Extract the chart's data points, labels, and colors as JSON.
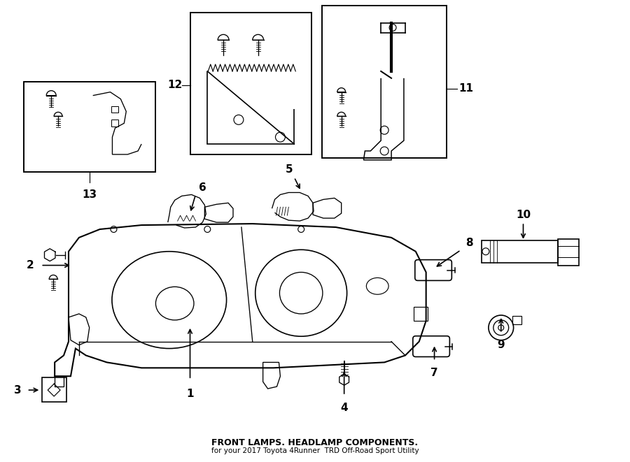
{
  "bg_color": "#ffffff",
  "line_color": "#000000",
  "title": "FRONT LAMPS. HEADLAMP COMPONENTS.",
  "subtitle": "for your 2017 Toyota 4Runner  TRD Off-Road Sport Utility"
}
